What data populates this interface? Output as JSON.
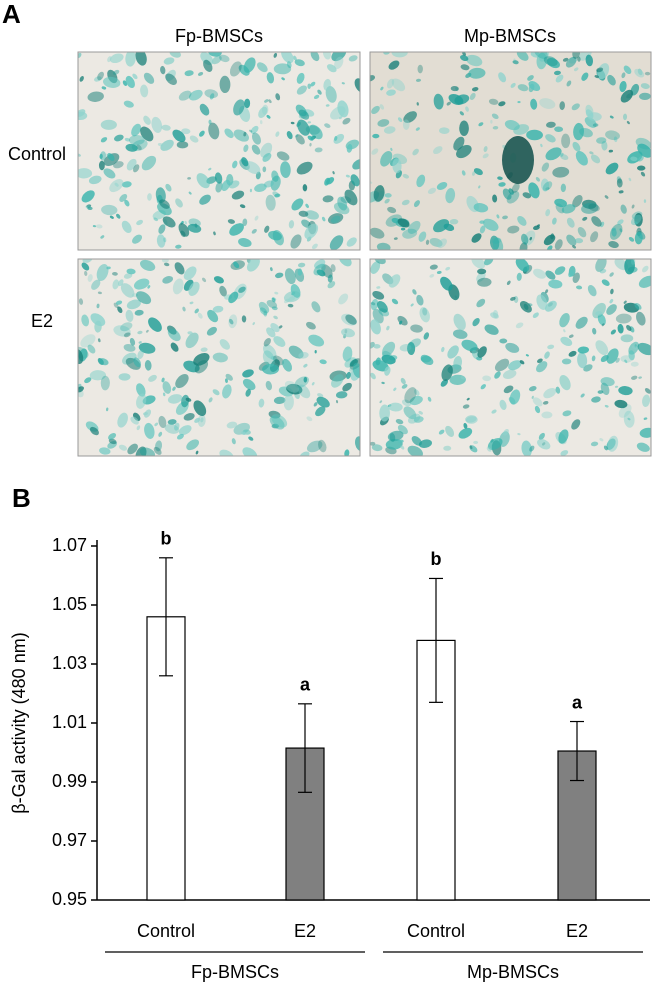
{
  "panel_a": {
    "label": "A",
    "columns": [
      "Fp-BMSCs",
      "Mp-BMSCs"
    ],
    "rows": [
      "Control",
      "E2"
    ]
  },
  "chart_data": {
    "type": "bar",
    "label": "B",
    "ylabel": "β-Gal activity (480 nm)",
    "categories": [
      "Control",
      "E2",
      "Control",
      "E2"
    ],
    "groups": [
      "Fp-BMSCs",
      "Mp-BMSCs"
    ],
    "values": [
      1.046,
      1.0015,
      1.038,
      1.0005
    ],
    "errors": [
      0.02,
      0.015,
      0.021,
      0.01
    ],
    "annotations": [
      "b",
      "a",
      "b",
      "a"
    ],
    "colors": [
      "#ffffff",
      "#808080",
      "#ffffff",
      "#808080"
    ],
    "ylim": [
      0.95,
      1.07
    ],
    "yticks": [
      0.95,
      0.97,
      0.99,
      1.01,
      1.03,
      1.05,
      1.07
    ]
  }
}
